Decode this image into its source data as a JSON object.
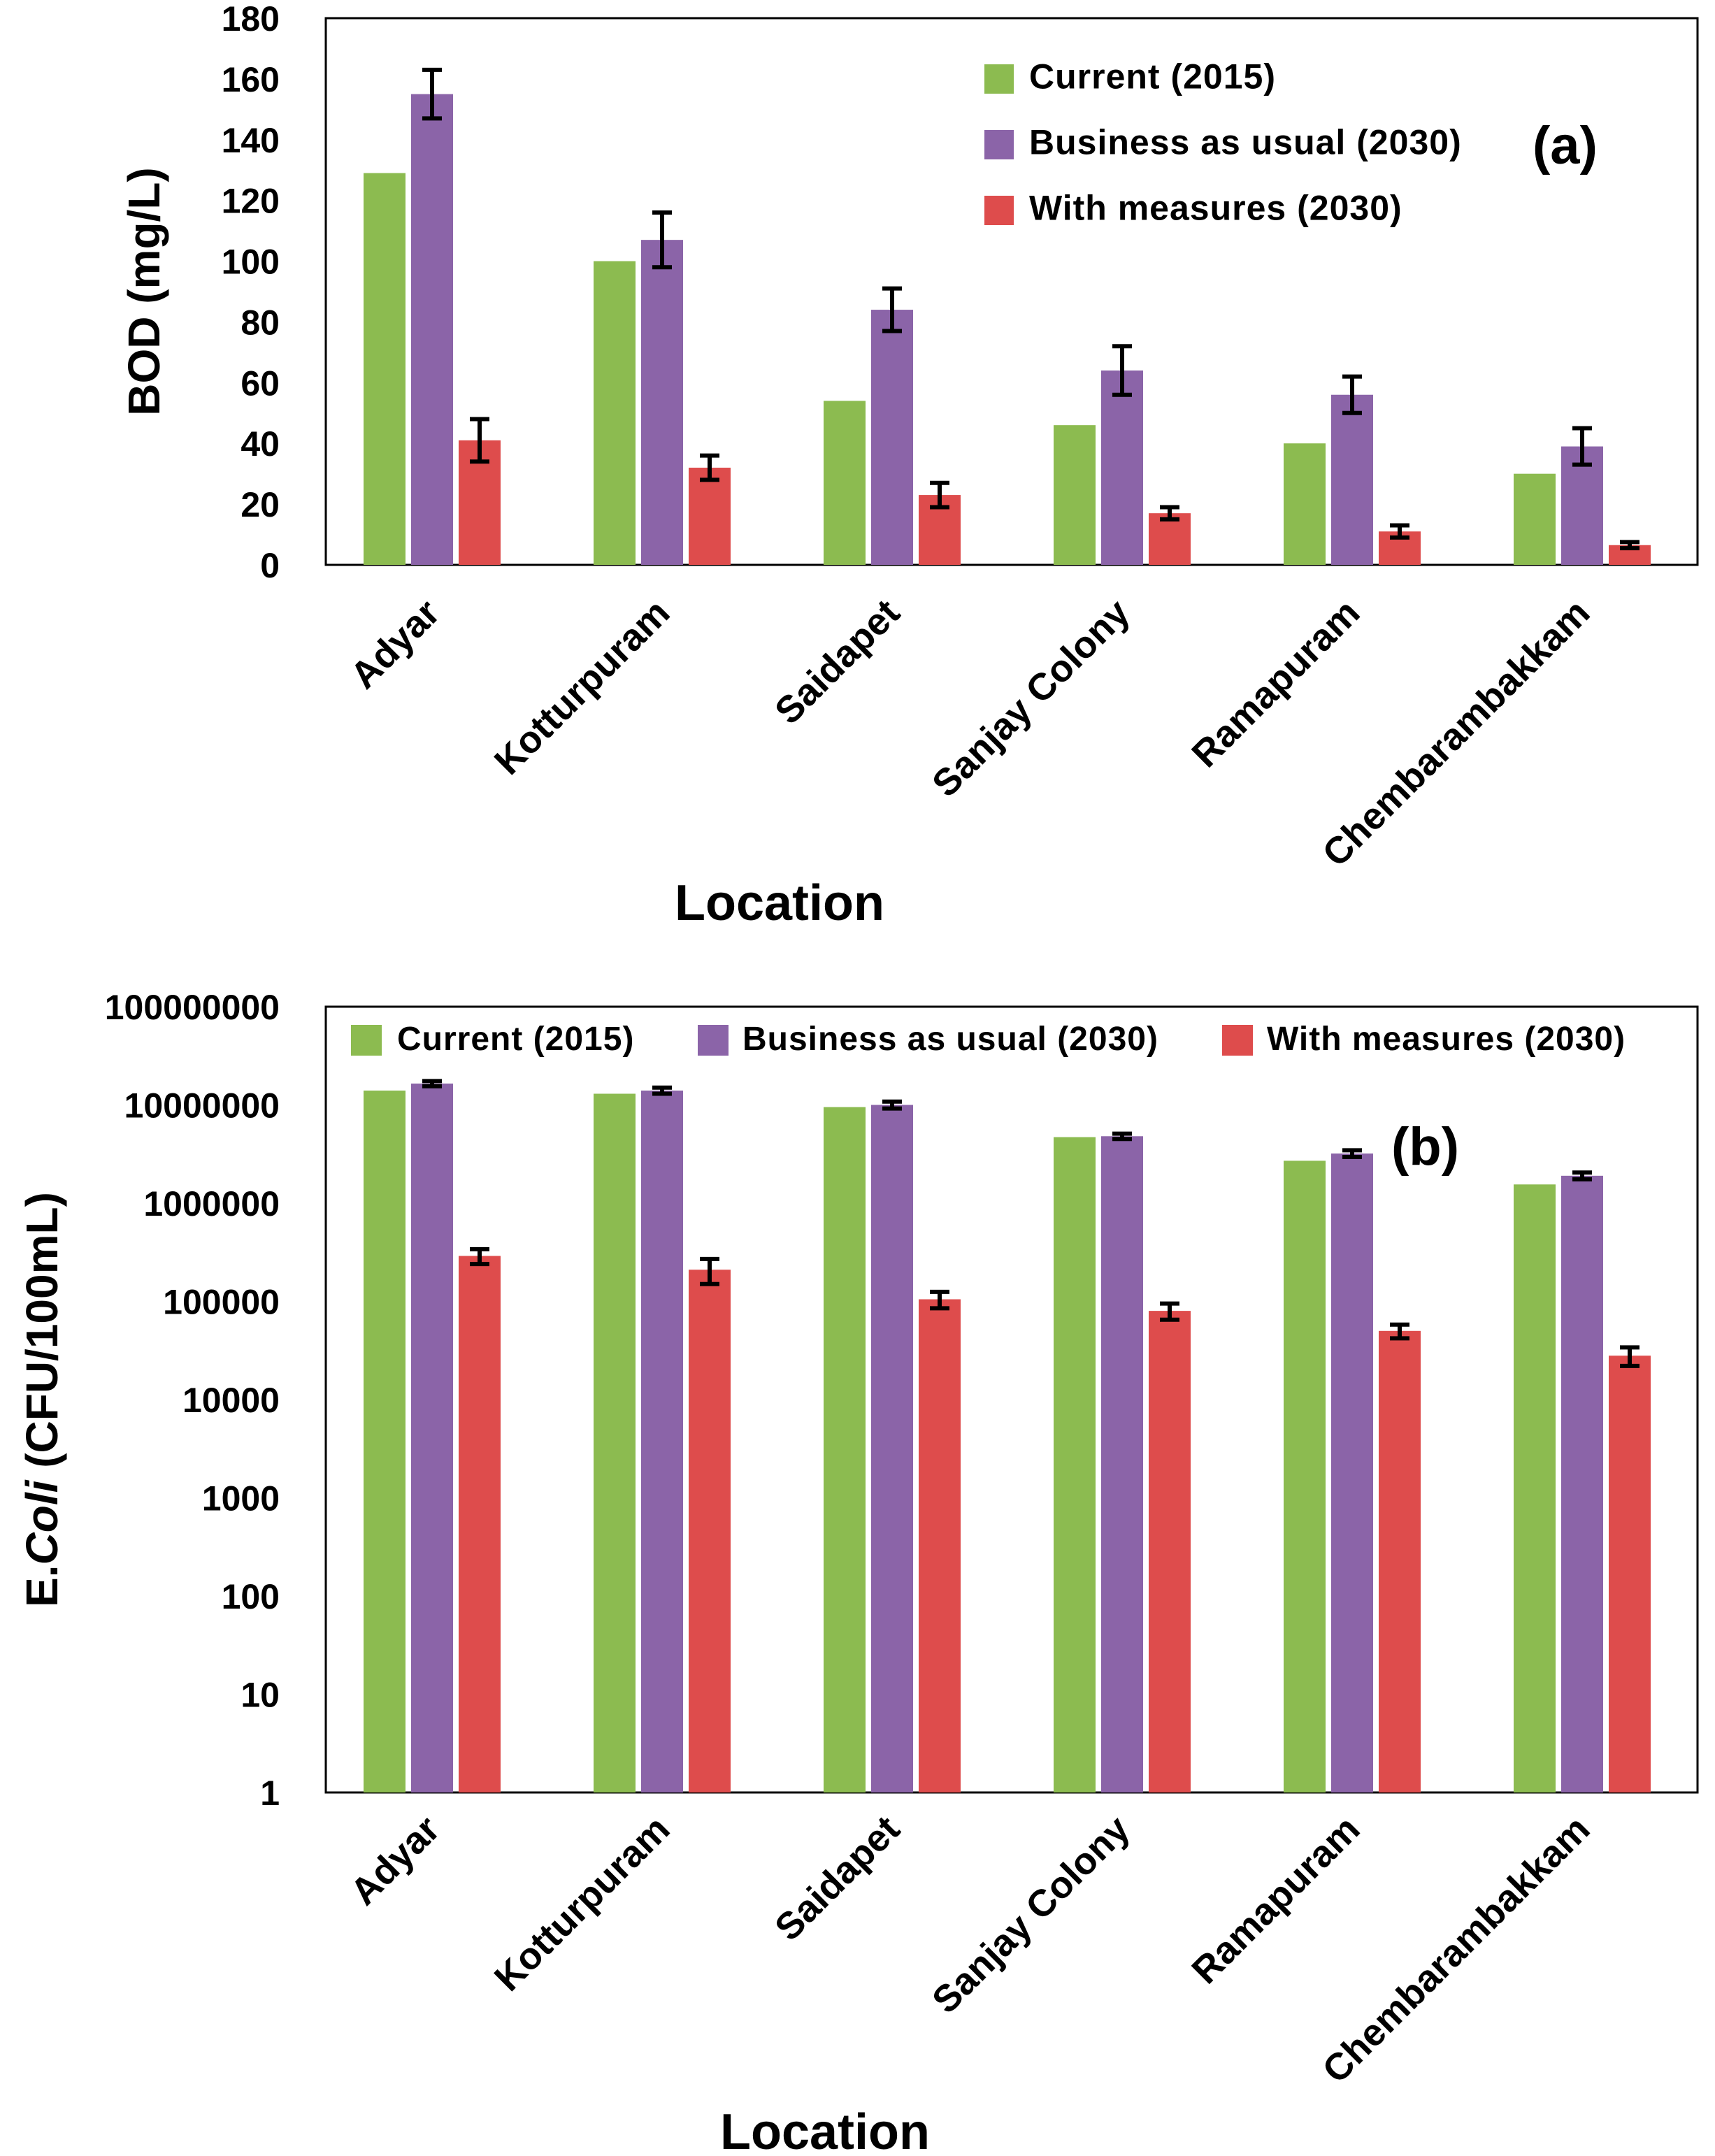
{
  "chart_data": [
    {
      "type": "bar",
      "panel_label": "(a)",
      "xlabel": "Location",
      "ylabel": "BOD (mg/L)",
      "yscale": "linear",
      "ylim": [
        0,
        180
      ],
      "yticks": [
        "0",
        "20",
        "40",
        "60",
        "80",
        "100",
        "120",
        "140",
        "160",
        "180"
      ],
      "legend_position": "top-right",
      "categories": [
        "Adyar",
        "Kotturpuram",
        "Saidapet",
        "Sanjay Colony",
        "Ramapuram",
        "Chembarambakkam"
      ],
      "series": [
        {
          "name": "Current (2015)",
          "color": "#8CBB50",
          "values": [
            129,
            100,
            54,
            46,
            40,
            30
          ],
          "errors": null
        },
        {
          "name": "Business as usual (2030)",
          "color": "#8B64A8",
          "values": [
            155,
            107,
            84,
            64,
            56,
            39
          ],
          "errors": [
            8,
            9,
            7,
            8,
            6,
            6
          ]
        },
        {
          "name": "With measures (2030)",
          "color": "#DE4C4C",
          "values": [
            41,
            32,
            23,
            17,
            11,
            6.5
          ],
          "errors": [
            7,
            4,
            4,
            2,
            2,
            1
          ]
        }
      ]
    },
    {
      "type": "bar",
      "panel_label": "(b)",
      "xlabel": "Location",
      "ylabel_prefix": "E.",
      "ylabel_italic": "Coli",
      "ylabel_suffix": " (CFU/100mL)",
      "yscale": "log",
      "ylim": [
        1,
        100000000
      ],
      "yticks": [
        "1",
        "10",
        "100",
        "1000",
        "10000",
        "100000",
        "1000000",
        "10000000",
        "100000000"
      ],
      "legend_position": "top",
      "categories": [
        "Adyar",
        "Kotturpuram",
        "Saidapet",
        "Sanjay Colony",
        "Ramapuram",
        "Chembarambakkam"
      ],
      "series": [
        {
          "name": "Current (2015)",
          "color": "#8CBB50",
          "values": [
            14000000,
            13000000,
            9500000,
            4700000,
            2700000,
            1550000
          ],
          "errors": null
        },
        {
          "name": "Business as usual (2030)",
          "color": "#8B64A8",
          "values": [
            16500000,
            14000000,
            10000000,
            4800000,
            3200000,
            1900000
          ],
          "errors": [
            1000000,
            1000000,
            800000,
            300000,
            250000,
            150000
          ]
        },
        {
          "name": "With measures (2030)",
          "color": "#DE4C4C",
          "values": [
            290000,
            210000,
            105000,
            80000,
            50000,
            28000
          ],
          "errors": [
            50000,
            60000,
            20000,
            15000,
            8000,
            6000
          ]
        }
      ]
    }
  ]
}
